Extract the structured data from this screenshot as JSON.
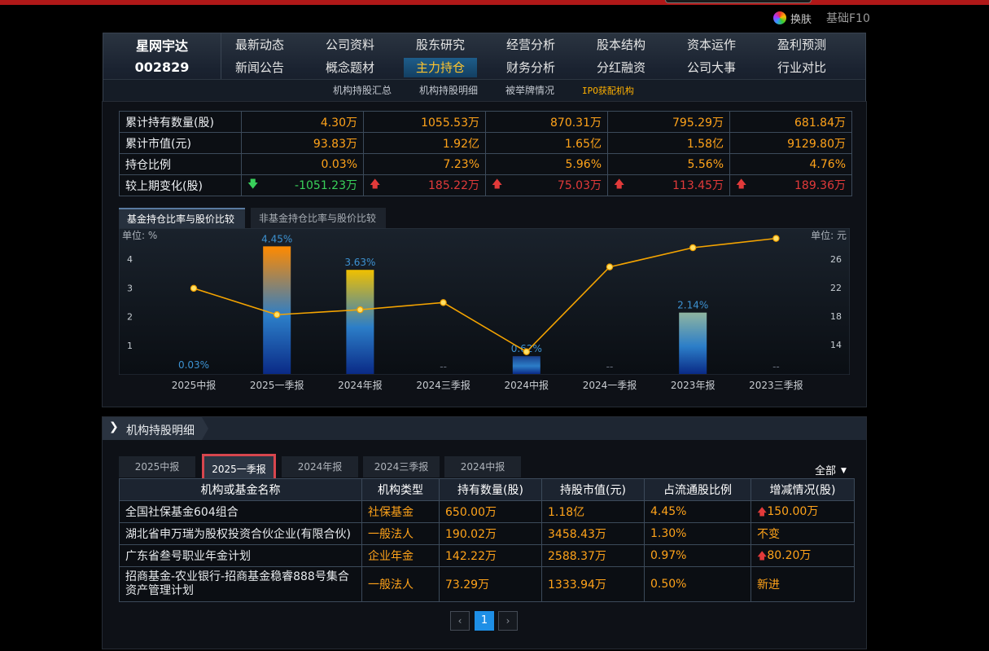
{
  "header": {
    "skin_label": "换肤",
    "f10_label": "基础F10"
  },
  "stock": {
    "name": "星网宇达",
    "code": "002829"
  },
  "nav": {
    "row1": [
      "最新动态",
      "公司资料",
      "股东研究",
      "经营分析",
      "股本结构",
      "资本运作",
      "盈利预测"
    ],
    "row2": [
      "新闻公告",
      "概念题材",
      "主力持仓",
      "财务分析",
      "分红融资",
      "公司大事",
      "行业对比"
    ],
    "active": "主力持仓",
    "sub": [
      "机构持股汇总",
      "机构持股明细",
      "被举牌情况",
      "IPO获配机构"
    ]
  },
  "summary": {
    "rows": [
      {
        "label": "累计持有数量(股)",
        "values": [
          "4.30万",
          "1055.53万",
          "870.31万",
          "795.29万",
          "681.84万"
        ]
      },
      {
        "label": "累计市值(元)",
        "values": [
          "93.83万",
          "1.92亿",
          "1.65亿",
          "1.58亿",
          "9129.80万"
        ]
      },
      {
        "label": "持仓比例",
        "values": [
          "0.03%",
          "7.23%",
          "5.96%",
          "5.56%",
          "4.76%"
        ]
      },
      {
        "label": "较上期变化(股)",
        "values": [
          "-1051.23万",
          "185.22万",
          "75.03万",
          "113.45万",
          "189.36万"
        ],
        "directions": [
          "down",
          "up",
          "up",
          "up",
          "up"
        ]
      }
    ]
  },
  "chart_tabs": [
    "基金持仓比率与股价比较",
    "非基金持仓比率与股价比较"
  ],
  "chart_data": {
    "type": "bar",
    "categories": [
      "2025中报",
      "2025一季报",
      "2024年报",
      "2024三季报",
      "2024中报",
      "2024一季报",
      "2023年报",
      "2023三季报"
    ],
    "series": [
      {
        "values": [
          0.03,
          4.45,
          3.63,
          null,
          0.62,
          null,
          2.14,
          null
        ],
        "bar_labels": [
          "0.03%",
          "4.45%",
          "3.63%",
          "--",
          "0.62%",
          "--",
          "2.14%",
          "--"
        ],
        "colors": [
          "#1a3f8a",
          "#ff8a00",
          "#f0c000",
          "#1a3f8a",
          "#1a3f8a",
          "#1a3f8a",
          "#8fb5a0",
          "#1a3f8a"
        ]
      },
      {
        "values": [
          21.9,
          18.2,
          18.9,
          19.9,
          13.0,
          24.9,
          27.6,
          28.9
        ],
        "color": "#f5a400",
        "axis": "right"
      }
    ],
    "y_left": {
      "unit_label": "单位: %",
      "range": [
        0,
        5
      ],
      "ticks": [
        1,
        2,
        3,
        4
      ]
    },
    "y_right": {
      "unit_label": "单位: 元",
      "range": [
        10,
        30
      ],
      "ticks": [
        14,
        18,
        22,
        26
      ]
    }
  },
  "detail": {
    "title": "机构持股明细",
    "tabs": [
      "2025中报",
      "2025一季报",
      "2024年报",
      "2024三季报",
      "2024中报"
    ],
    "active_tab": "2025一季报",
    "filter": "全部",
    "columns": [
      "机构或基金名称",
      "机构类型",
      "持有数量(股)",
      "持股市值(元)",
      "占流通股比例",
      "增减情况(股)"
    ],
    "rows": [
      {
        "name": "全国社保基金604组合",
        "type": "社保基金",
        "qty": "650.00万",
        "value": "1.18亿",
        "ratio": "4.45%",
        "change": "150.00万",
        "dir": "up"
      },
      {
        "name": "湖北省申万瑞为股权投资合伙企业(有限合伙)",
        "type": "一般法人",
        "qty": "190.02万",
        "value": "3458.43万",
        "ratio": "1.30%",
        "change": "不变",
        "dir": ""
      },
      {
        "name": "广东省叁号职业年金计划",
        "type": "企业年金",
        "qty": "142.22万",
        "value": "2588.37万",
        "ratio": "0.97%",
        "change": "80.20万",
        "dir": "up"
      },
      {
        "name": "招商基金-农业银行-招商基金稳睿888号集合资产管理计划",
        "type": "一般法人",
        "qty": "73.29万",
        "value": "1333.94万",
        "ratio": "0.50%",
        "change": "新进",
        "dir": ""
      }
    ]
  },
  "pager": {
    "prev": "‹",
    "page": "1",
    "next": "›"
  }
}
